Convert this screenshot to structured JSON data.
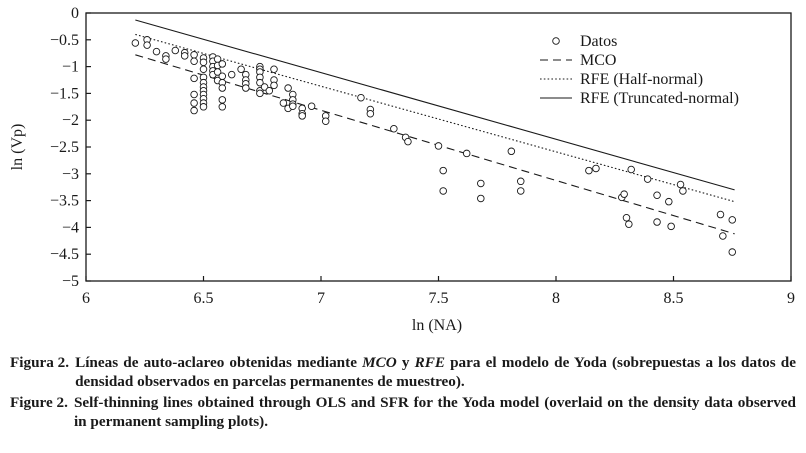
{
  "chart_data": {
    "type": "scatter",
    "xlabel": "ln (NA)",
    "ylabel": "ln (Vp)",
    "xlim": [
      6,
      9
    ],
    "ylim": [
      -5,
      0
    ],
    "xticks": [
      "6",
      "6.5",
      "7",
      "7.5",
      "8",
      "8.5",
      "9"
    ],
    "yticks": [
      "0",
      "−0.5",
      "−1",
      "−1.5",
      "−2",
      "−2.5",
      "−3",
      "−3.5",
      "−4",
      "−4.5",
      "−5"
    ],
    "xtick_values": [
      6,
      6.5,
      7,
      7.5,
      8,
      8.5,
      9
    ],
    "ytick_values": [
      0,
      -0.5,
      -1,
      -1.5,
      -2,
      -2.5,
      -3,
      -3.5,
      -4,
      -4.5,
      -5
    ],
    "legend": {
      "position": "top-right",
      "entries": [
        {
          "label": "Datos",
          "style": "circle"
        },
        {
          "label": "MCO",
          "style": "dashed"
        },
        {
          "label": "RFE (Half-normal)",
          "style": "dotted"
        },
        {
          "label": "RFE (Truncated-normal)",
          "style": "solid"
        }
      ]
    },
    "lines": [
      {
        "name": "MCO",
        "style": "dashed",
        "x": [
          6.21,
          8.76
        ],
        "y": [
          -0.78,
          -4.12
        ]
      },
      {
        "name": "RFE (Half-normal)",
        "style": "dotted",
        "x": [
          6.21,
          8.76
        ],
        "y": [
          -0.4,
          -3.52
        ]
      },
      {
        "name": "RFE (Truncated-normal)",
        "style": "solid",
        "x": [
          6.21,
          8.76
        ],
        "y": [
          -0.13,
          -3.3
        ]
      }
    ],
    "series": [
      {
        "name": "Datos",
        "points": [
          [
            6.21,
            -0.56
          ],
          [
            6.26,
            -0.5
          ],
          [
            6.26,
            -0.6
          ],
          [
            6.3,
            -0.72
          ],
          [
            6.34,
            -0.8
          ],
          [
            6.34,
            -0.86
          ],
          [
            6.38,
            -0.7
          ],
          [
            6.42,
            -0.74
          ],
          [
            6.42,
            -0.8
          ],
          [
            6.46,
            -0.78
          ],
          [
            6.46,
            -0.9
          ],
          [
            6.46,
            -1.22
          ],
          [
            6.46,
            -1.52
          ],
          [
            6.46,
            -1.68
          ],
          [
            6.46,
            -1.82
          ],
          [
            6.5,
            -0.84
          ],
          [
            6.5,
            -0.92
          ],
          [
            6.5,
            -1.05
          ],
          [
            6.5,
            -1.2
          ],
          [
            6.5,
            -1.3
          ],
          [
            6.5,
            -1.38
          ],
          [
            6.5,
            -1.45
          ],
          [
            6.5,
            -1.52
          ],
          [
            6.5,
            -1.6
          ],
          [
            6.5,
            -1.68
          ],
          [
            6.5,
            -1.75
          ],
          [
            6.54,
            -0.82
          ],
          [
            6.54,
            -0.9
          ],
          [
            6.54,
            -1.0
          ],
          [
            6.54,
            -1.08
          ],
          [
            6.54,
            -1.15
          ],
          [
            6.56,
            -0.86
          ],
          [
            6.56,
            -0.98
          ],
          [
            6.56,
            -1.1
          ],
          [
            6.56,
            -1.26
          ],
          [
            6.58,
            -0.95
          ],
          [
            6.58,
            -1.18
          ],
          [
            6.58,
            -1.3
          ],
          [
            6.58,
            -1.4
          ],
          [
            6.58,
            -1.62
          ],
          [
            6.58,
            -1.75
          ],
          [
            6.62,
            -1.15
          ],
          [
            6.66,
            -1.05
          ],
          [
            6.68,
            -1.15
          ],
          [
            6.68,
            -1.25
          ],
          [
            6.68,
            -1.32
          ],
          [
            6.68,
            -1.4
          ],
          [
            6.74,
            -1.0
          ],
          [
            6.74,
            -1.05
          ],
          [
            6.74,
            -1.1
          ],
          [
            6.74,
            -1.2
          ],
          [
            6.74,
            -1.3
          ],
          [
            6.74,
            -1.45
          ],
          [
            6.74,
            -1.5
          ],
          [
            6.76,
            -1.38
          ],
          [
            6.78,
            -1.45
          ],
          [
            6.8,
            -1.05
          ],
          [
            6.8,
            -1.25
          ],
          [
            6.8,
            -1.35
          ],
          [
            6.84,
            -1.68
          ],
          [
            6.86,
            -1.4
          ],
          [
            6.86,
            -1.78
          ],
          [
            6.88,
            -1.52
          ],
          [
            6.88,
            -1.62
          ],
          [
            6.88,
            -1.7
          ],
          [
            6.88,
            -1.74
          ],
          [
            6.92,
            -1.78
          ],
          [
            6.92,
            -1.88
          ],
          [
            6.92,
            -1.92
          ],
          [
            6.96,
            -1.74
          ],
          [
            7.02,
            -1.92
          ],
          [
            7.02,
            -2.02
          ],
          [
            7.17,
            -1.58
          ],
          [
            7.21,
            -1.8
          ],
          [
            7.21,
            -1.88
          ],
          [
            7.31,
            -2.16
          ],
          [
            7.36,
            -2.32
          ],
          [
            7.37,
            -2.4
          ],
          [
            7.5,
            -2.48
          ],
          [
            7.52,
            -2.94
          ],
          [
            7.52,
            -3.32
          ],
          [
            7.62,
            -2.62
          ],
          [
            7.68,
            -3.18
          ],
          [
            7.68,
            -3.46
          ],
          [
            7.81,
            -2.58
          ],
          [
            7.85,
            -3.14
          ],
          [
            7.85,
            -3.32
          ],
          [
            8.14,
            -2.94
          ],
          [
            8.17,
            -2.9
          ],
          [
            8.28,
            -3.44
          ],
          [
            8.29,
            -3.38
          ],
          [
            8.3,
            -3.82
          ],
          [
            8.31,
            -3.94
          ],
          [
            8.32,
            -2.92
          ],
          [
            8.39,
            -3.1
          ],
          [
            8.43,
            -3.4
          ],
          [
            8.43,
            -3.9
          ],
          [
            8.48,
            -3.52
          ],
          [
            8.49,
            -3.98
          ],
          [
            8.53,
            -3.2
          ],
          [
            8.54,
            -3.32
          ],
          [
            8.7,
            -3.76
          ],
          [
            8.71,
            -4.16
          ],
          [
            8.75,
            -3.86
          ],
          [
            8.75,
            -4.46
          ]
        ]
      }
    ]
  },
  "captions": {
    "es_label": "Figura 2.",
    "es_text_1": "Líneas de auto-aclareo obtenidas mediante ",
    "es_em_1": "MCO",
    "es_text_2": " y ",
    "es_em_2": "RFE",
    "es_text_3": " para el modelo de Yoda (sobrepuestas a los datos de densidad observados en parcelas permanentes de muestreo).",
    "en_label": "Figure 2.",
    "en_text": "Self-thinning lines obtained through OLS and SFR for the Yoda model (overlaid on the density data observed in permanent sampling plots)."
  }
}
